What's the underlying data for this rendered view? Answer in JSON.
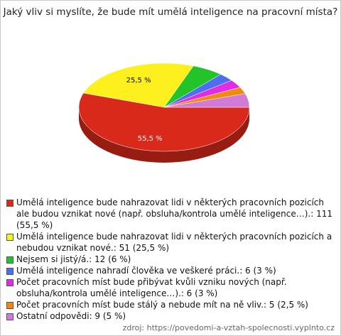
{
  "chart_data": {
    "type": "pie",
    "title": "Jaký vliv si myslíte, že bude mít umělá inteligence na pracovní místa?",
    "categories": [
      "Umělá inteligence bude nahrazovat lidi v některých pracovních pozicích ale budou vznikat nové (např. obsluha/kontrola umělé inteligence…).: 111 (55,5 %)",
      "Umělá inteligence bude nahrazovat lidi v některých pracovních pozicích a nebudou vznikat nové.: 51 (25,5 %)",
      "Nejsem si jistý/á.: 12 (6 %)",
      "Umělá inteligence nahradí člověka ve veškeré práci.: 6 (3 %)",
      "Počet pracovních míst bude přibývat kvůli vzniku nových (např. obsluha/kontrola umělé inteligence…).: 6 (3 %)",
      "Počet pracovních míst bude stálý a nebude mít na ně vliv.: 5 (2,5 %)",
      "Ostatní odpovědi: 9 (5 %)"
    ],
    "values": [
      55.5,
      25.5,
      6,
      3,
      3,
      2.5,
      5
    ],
    "value_labels": [
      "55,5 %",
      "25,5 %",
      null,
      null,
      null,
      null,
      null
    ],
    "colors": [
      "#d8291b",
      "#fdf01e",
      "#22c42a",
      "#4d6ef2",
      "#e02de4",
      "#f28a12",
      "#d17bd6"
    ],
    "source": "zdroj: https://povedomi-a-vztah-spolecnosti.vyplnto.cz"
  }
}
